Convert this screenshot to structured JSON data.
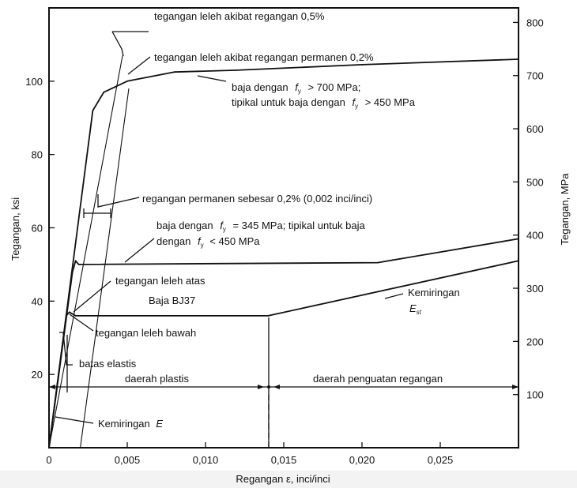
{
  "chart_data": {
    "type": "line",
    "xlabel": "Regangan ε, inci/inci",
    "ylabel": "Tegangan, ksi",
    "ylabel_right": "Tegangan, MPa",
    "xlim": [
      0,
      0.03
    ],
    "ylim": [
      0,
      120
    ],
    "x_ticks": [
      0,
      0.005,
      0.01,
      0.015,
      0.02,
      0.025
    ],
    "x_tick_labels": [
      "0",
      "0,005",
      "0,010",
      "0,015",
      "0,020",
      "0,025"
    ],
    "y_ticks": [
      20,
      40,
      60,
      80,
      100
    ],
    "y_tick_labels": [
      "20",
      "40",
      "60",
      "80",
      "100"
    ],
    "y_right_ticks_mpa": [
      100,
      200,
      300,
      400,
      500,
      600,
      700,
      800
    ],
    "y_right_tick_labels": [
      "100",
      "200",
      "300",
      "400",
      "500",
      "600",
      "700",
      "800"
    ],
    "grid": false,
    "series": [
      {
        "name": "baja dengan fy > 700 MPa",
        "points": [
          [
            0,
            0
          ],
          [
            0.0028,
            92
          ],
          [
            0.0035,
            97
          ],
          [
            0.005,
            100
          ],
          [
            0.008,
            102.5
          ],
          [
            0.012,
            103
          ],
          [
            0.02,
            104.5
          ],
          [
            0.03,
            106
          ]
        ]
      },
      {
        "name": "baja dengan fy = 345 MPa",
        "points": [
          [
            0,
            0
          ],
          [
            0.0015,
            48
          ],
          [
            0.0017,
            51
          ],
          [
            0.0019,
            50
          ],
          [
            0.021,
            50.5
          ],
          [
            0.03,
            57
          ]
        ]
      },
      {
        "name": "Baja BJ37",
        "points": [
          [
            0,
            0
          ],
          [
            0.0011,
            36
          ],
          [
            0.0013,
            37
          ],
          [
            0.0017,
            36
          ],
          [
            0.014,
            36
          ],
          [
            0.03,
            51
          ]
        ]
      }
    ],
    "offset_lines": [
      {
        "from": [
          0.002,
          0
        ],
        "to": [
          0.0051,
          98
        ]
      },
      {
        "from": [
          0,
          0
        ],
        "to": [
          0.0047,
          107
        ]
      }
    ],
    "annotations": [
      "tegangan leleh akibat regangan 0,5%",
      "tegangan leleh akibat regangan permanen 0,2%",
      "baja dengan",
      "> 700 MPa;",
      "tipikal untuk baja dengan",
      "> 450 MPa",
      "regangan permanen sebesar 0,2% (0,002 inci/inci)",
      "baja dengan",
      "= 345 MPa; tipikal untuk baja",
      "dengan",
      "< 450 MPa",
      "tegangan leleh atas",
      "Baja BJ37",
      "tegangan leleh bawah",
      "batas elastis",
      "daerah plastis",
      "daerah penguatan regangan",
      "Kemiringan",
      "Kemiringan",
      "f",
      "y",
      "E",
      "st"
    ],
    "regions": [
      {
        "label": "daerah plastis",
        "x_range": [
          0,
          0.014
        ]
      },
      {
        "label": "daerah penguatan regangan",
        "x_range": [
          0.014,
          0.03
        ]
      }
    ]
  }
}
